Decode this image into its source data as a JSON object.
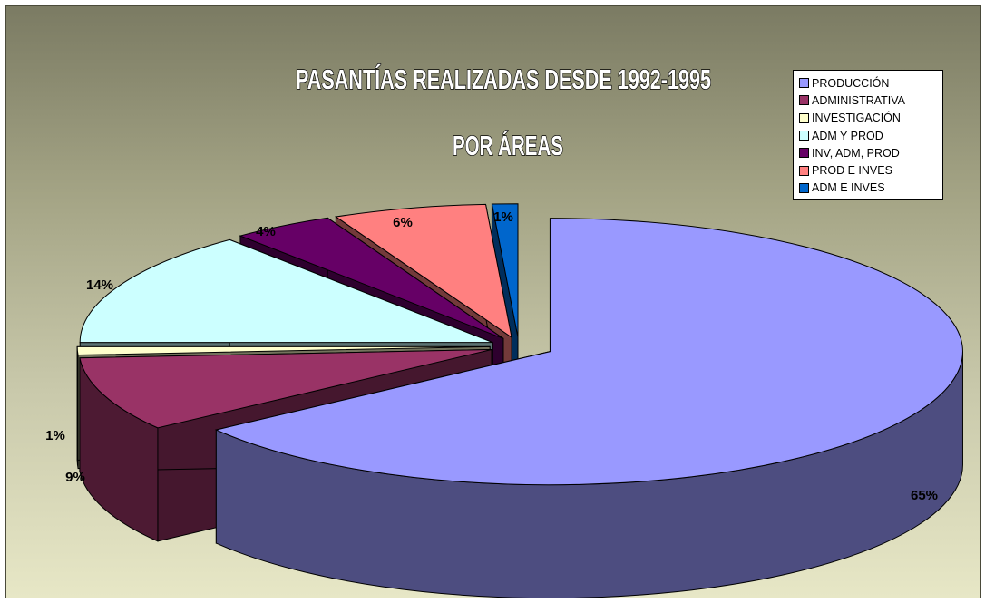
{
  "chart_data": {
    "type": "pie",
    "title": "PASANTÍAS REALIZADAS DESDE 1992-1995",
    "subtitle": "POR ÁREAS",
    "legend_position": "top-right",
    "categories": [
      "PRODUCCIÓN",
      "ADMINISTRATIVA",
      "INVESTIGACIÓN",
      "ADM Y PROD",
      "INV, ADM, PROD",
      "PROD E INVES",
      "ADM E INVES"
    ],
    "values": [
      65,
      9,
      1,
      14,
      4,
      6,
      1
    ],
    "labels": [
      "65%",
      "9%",
      "1%",
      "14%",
      "4%",
      "6%",
      "1%"
    ],
    "colors": [
      "#9999ff",
      "#993366",
      "#ffffcc",
      "#ccffff",
      "#660066",
      "#ff8080",
      "#0066cc"
    ],
    "style": "3d-exploded"
  }
}
